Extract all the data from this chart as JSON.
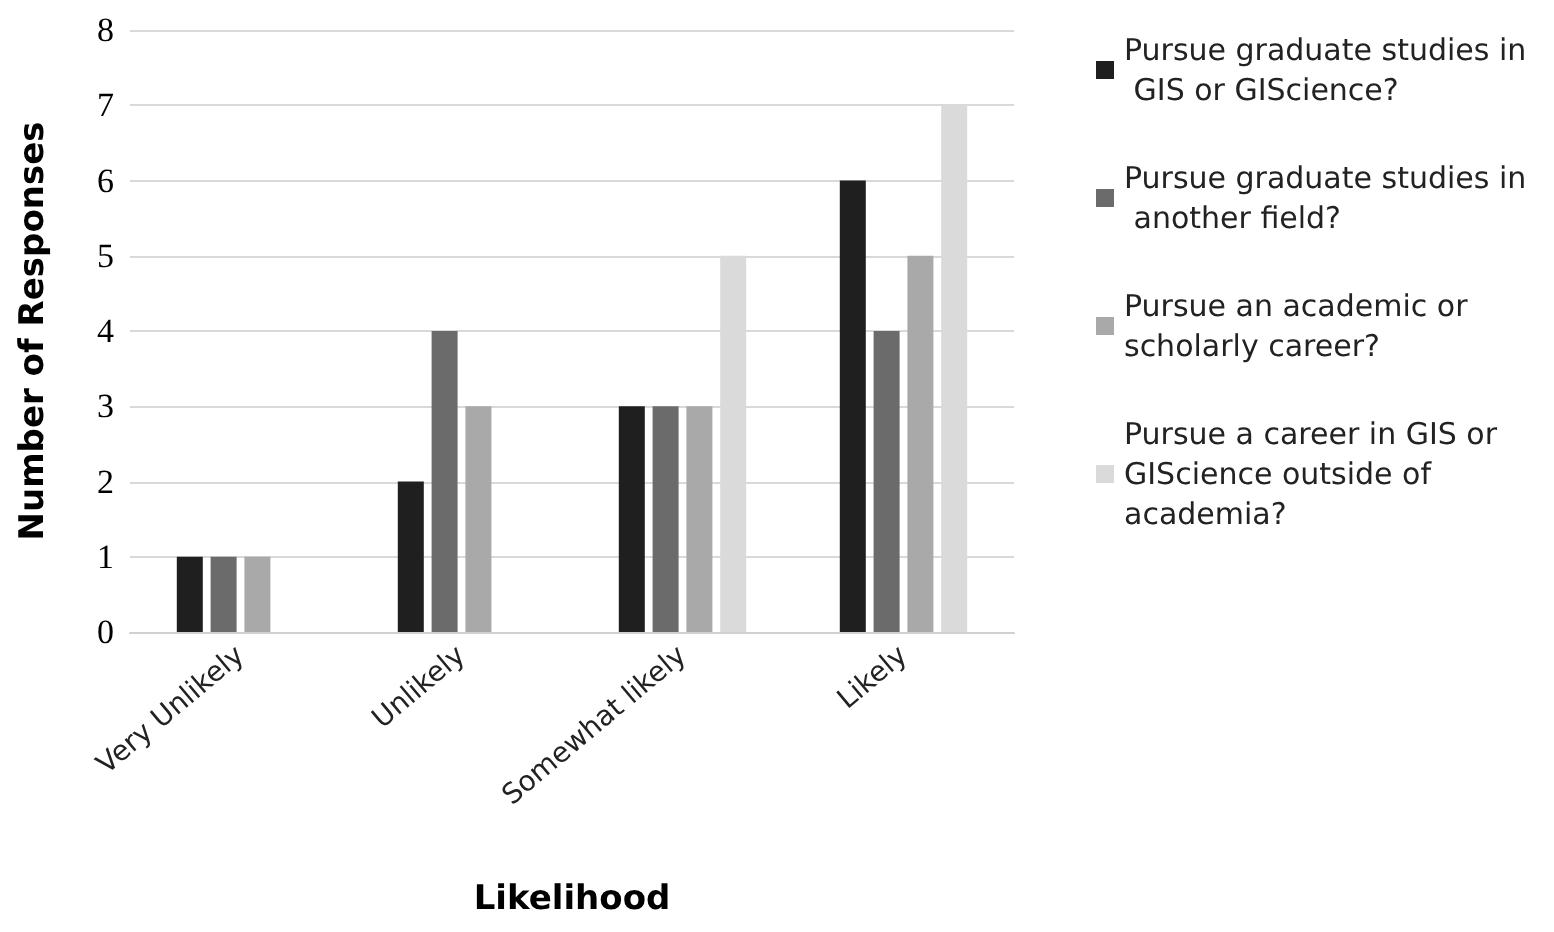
{
  "chart_data": {
    "type": "bar",
    "xlabel": "Likelihood",
    "ylabel": "Number of Responses",
    "categories": [
      "Very Unlikely",
      "Unlikely",
      "Somewhat likely",
      "Likely"
    ],
    "series": [
      {
        "name": "Pursue graduate studies in GIS or GIScience?",
        "color": "#1f1f1f",
        "values": [
          1,
          2,
          3,
          6
        ]
      },
      {
        "name": "Pursue graduate studies in another field?",
        "color": "#6b6b6b",
        "values": [
          1,
          4,
          3,
          4
        ]
      },
      {
        "name": "Pursue an academic or scholarly career?",
        "color": "#a9a9a9",
        "values": [
          1,
          3,
          3,
          5
        ]
      },
      {
        "name": "Pursue a career in GIS or GIScience outside of academia?",
        "color": "#dadada",
        "values": [
          0,
          0,
          5,
          7
        ]
      }
    ],
    "ylim": [
      0,
      8
    ],
    "yticks": [
      0,
      1,
      2,
      3,
      4,
      5,
      6,
      7,
      8
    ],
    "grid": "y",
    "legend": "right"
  }
}
